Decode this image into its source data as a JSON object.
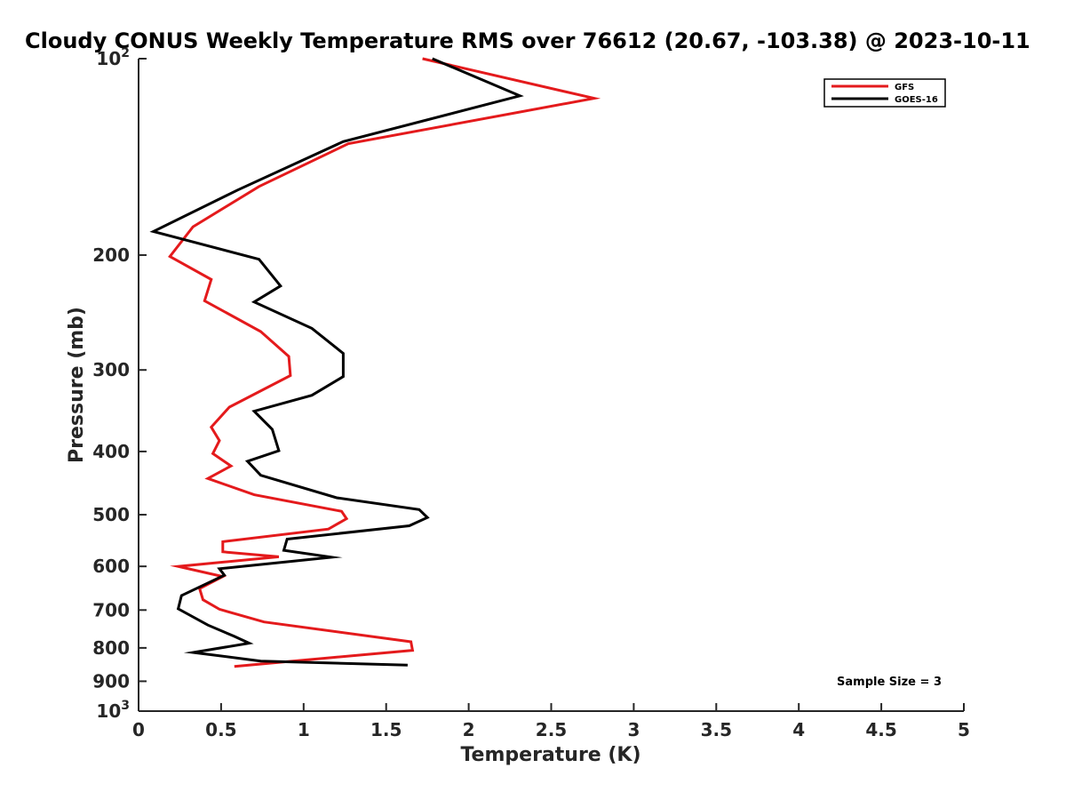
{
  "chart_data": {
    "type": "line",
    "title": "Cloudy CONUS Weekly Temperature RMS over 76612 (20.67, -103.38) @ 2023-10-11",
    "xlabel": "Temperature (K)",
    "ylabel": "Pressure (mb)",
    "xlim": [
      0,
      5
    ],
    "ylim": [
      1000,
      100
    ],
    "yscale": "log",
    "y_reversed": true,
    "x_ticks": [
      0,
      0.5,
      1,
      1.5,
      2,
      2.5,
      3,
      3.5,
      4,
      4.5,
      5
    ],
    "x_tick_labels": [
      "0",
      "0.5",
      "1",
      "1.5",
      "2",
      "2.5",
      "3",
      "3.5",
      "4",
      "4.5",
      "5"
    ],
    "y_ticks": [
      100,
      200,
      300,
      400,
      500,
      600,
      700,
      800,
      900,
      1000
    ],
    "y_tick_labels": [
      {
        "base": "10",
        "exp": "2"
      },
      {
        "base": "200",
        "exp": ""
      },
      {
        "base": "300",
        "exp": ""
      },
      {
        "base": "400",
        "exp": ""
      },
      {
        "base": "500",
        "exp": ""
      },
      {
        "base": "600",
        "exp": ""
      },
      {
        "base": "700",
        "exp": ""
      },
      {
        "base": "800",
        "exp": ""
      },
      {
        "base": "900",
        "exp": ""
      },
      {
        "base": "10",
        "exp": "3"
      }
    ],
    "legend_position": "top-right",
    "annotation": "Sample Size = 3",
    "series": [
      {
        "name": "GFS",
        "color": "#e41a1c",
        "points": [
          [
            1.72,
            100
          ],
          [
            2.76,
            115
          ],
          [
            1.27,
            135
          ],
          [
            0.73,
            157
          ],
          [
            0.33,
            181
          ],
          [
            0.19,
            201
          ],
          [
            0.44,
            218
          ],
          [
            0.4,
            235
          ],
          [
            0.74,
            262
          ],
          [
            0.91,
            286
          ],
          [
            0.92,
            306
          ],
          [
            0.55,
            342
          ],
          [
            0.44,
            367
          ],
          [
            0.49,
            385
          ],
          [
            0.45,
            403
          ],
          [
            0.56,
            421
          ],
          [
            0.42,
            440
          ],
          [
            0.7,
            466
          ],
          [
            1.23,
            494
          ],
          [
            1.26,
            507
          ],
          [
            1.15,
            526
          ],
          [
            0.51,
            550
          ],
          [
            0.51,
            570
          ],
          [
            0.85,
            580
          ],
          [
            0.24,
            600
          ],
          [
            0.51,
            622
          ],
          [
            0.37,
            649
          ],
          [
            0.39,
            675
          ],
          [
            0.49,
            698
          ],
          [
            0.76,
            730
          ],
          [
            1.65,
            783
          ],
          [
            1.66,
            807
          ],
          [
            0.58,
            854
          ]
        ]
      },
      {
        "name": "GOES-16",
        "color": "#000000",
        "points": [
          [
            1.78,
            100
          ],
          [
            2.31,
            114
          ],
          [
            1.24,
            134
          ],
          [
            0.6,
            159
          ],
          [
            0.09,
            184
          ],
          [
            0.73,
            203
          ],
          [
            0.86,
            223
          ],
          [
            0.7,
            236
          ],
          [
            1.05,
            259
          ],
          [
            1.24,
            283
          ],
          [
            1.24,
            307
          ],
          [
            1.05,
            328
          ],
          [
            0.7,
            347
          ],
          [
            0.81,
            370
          ],
          [
            0.85,
            399
          ],
          [
            0.66,
            414
          ],
          [
            0.74,
            435
          ],
          [
            1.2,
            471
          ],
          [
            1.7,
            491
          ],
          [
            1.75,
            505
          ],
          [
            1.64,
            520
          ],
          [
            0.9,
            545
          ],
          [
            0.88,
            567
          ],
          [
            1.17,
            581
          ],
          [
            0.49,
            605
          ],
          [
            0.52,
            619
          ],
          [
            0.26,
            665
          ],
          [
            0.24,
            697
          ],
          [
            0.42,
            738
          ],
          [
            0.58,
            768
          ],
          [
            0.67,
            787
          ],
          [
            0.33,
            813
          ],
          [
            0.74,
            838
          ],
          [
            1.63,
            850
          ]
        ]
      }
    ]
  }
}
